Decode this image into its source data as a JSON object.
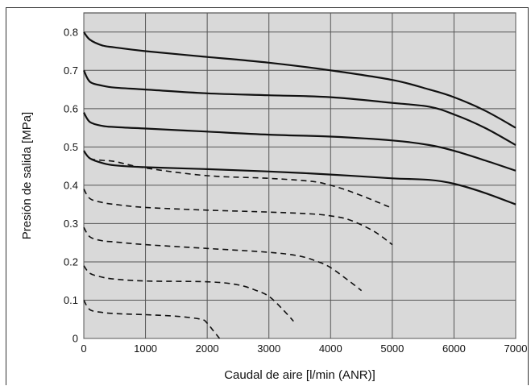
{
  "chart_data": {
    "type": "line",
    "xlabel": "Caudal de aire [l/min (ANR)]",
    "ylabel": "Presión de salida [MPa]",
    "xlim": [
      0,
      7000
    ],
    "ylim": [
      0,
      0.85
    ],
    "x_ticks": [
      "0",
      "1000",
      "2000",
      "3000",
      "4000",
      "5000",
      "6000",
      "7000"
    ],
    "y_ticks": [
      "0",
      "0.1",
      "0.2",
      "0.3",
      "0.4",
      "0.5",
      "0.6",
      "0.7",
      "0.8"
    ],
    "grid": true,
    "background": "#d9d9d9",
    "series": [
      {
        "style": "solid",
        "x": [
          0,
          100,
          300,
          500,
          1000,
          2000,
          3000,
          4000,
          5000,
          5600,
          6000,
          6500,
          7000
        ],
        "y": [
          0.8,
          0.78,
          0.765,
          0.76,
          0.75,
          0.735,
          0.72,
          0.7,
          0.675,
          0.65,
          0.63,
          0.595,
          0.55
        ]
      },
      {
        "style": "solid",
        "x": [
          0,
          100,
          300,
          500,
          1000,
          2000,
          3000,
          4000,
          5000,
          5600,
          6000,
          6500,
          7000
        ],
        "y": [
          0.7,
          0.67,
          0.66,
          0.655,
          0.65,
          0.64,
          0.635,
          0.63,
          0.615,
          0.605,
          0.585,
          0.55,
          0.505
        ]
      },
      {
        "style": "solid",
        "x": [
          0,
          100,
          300,
          500,
          1000,
          2000,
          3000,
          4000,
          5000,
          5600,
          6000,
          6500,
          7000
        ],
        "y": [
          0.59,
          0.565,
          0.555,
          0.552,
          0.548,
          0.54,
          0.532,
          0.527,
          0.517,
          0.505,
          0.49,
          0.465,
          0.438
        ]
      },
      {
        "style": "solid",
        "x": [
          0,
          100,
          300,
          500,
          1000,
          2000,
          3000,
          4000,
          5000,
          5600,
          6000,
          6500,
          7000
        ],
        "y": [
          0.49,
          0.47,
          0.458,
          0.452,
          0.447,
          0.442,
          0.436,
          0.428,
          0.418,
          0.414,
          0.404,
          0.38,
          0.35
        ]
      },
      {
        "style": "dashed",
        "x": [
          0,
          100,
          300,
          500,
          1000,
          2000,
          3000,
          3700,
          4000,
          4300,
          4700,
          5000
        ],
        "y": [
          0.49,
          0.47,
          0.465,
          0.462,
          0.445,
          0.425,
          0.418,
          0.41,
          0.4,
          0.385,
          0.36,
          0.34
        ]
      },
      {
        "style": "dashed",
        "x": [
          0,
          100,
          300,
          500,
          1000,
          2000,
          3000,
          3700,
          4000,
          4300,
          4700,
          5000
        ],
        "y": [
          0.39,
          0.365,
          0.355,
          0.35,
          0.342,
          0.335,
          0.33,
          0.325,
          0.32,
          0.31,
          0.28,
          0.245
        ]
      },
      {
        "style": "dashed",
        "x": [
          0,
          100,
          300,
          500,
          1000,
          2000,
          3000,
          3500,
          3800,
          4000,
          4300,
          4500
        ],
        "y": [
          0.29,
          0.265,
          0.255,
          0.252,
          0.245,
          0.235,
          0.225,
          0.215,
          0.2,
          0.185,
          0.15,
          0.125
        ]
      },
      {
        "style": "dashed",
        "x": [
          0,
          100,
          300,
          500,
          1000,
          2000,
          2500,
          2800,
          3000,
          3200,
          3400
        ],
        "y": [
          0.19,
          0.17,
          0.16,
          0.155,
          0.15,
          0.148,
          0.14,
          0.125,
          0.11,
          0.08,
          0.045
        ]
      },
      {
        "style": "dashed",
        "x": [
          0,
          100,
          300,
          500,
          1000,
          1500,
          1900,
          2000,
          2100,
          2200
        ],
        "y": [
          0.1,
          0.075,
          0.068,
          0.065,
          0.062,
          0.058,
          0.05,
          0.04,
          0.02,
          0.0
        ]
      }
    ]
  }
}
